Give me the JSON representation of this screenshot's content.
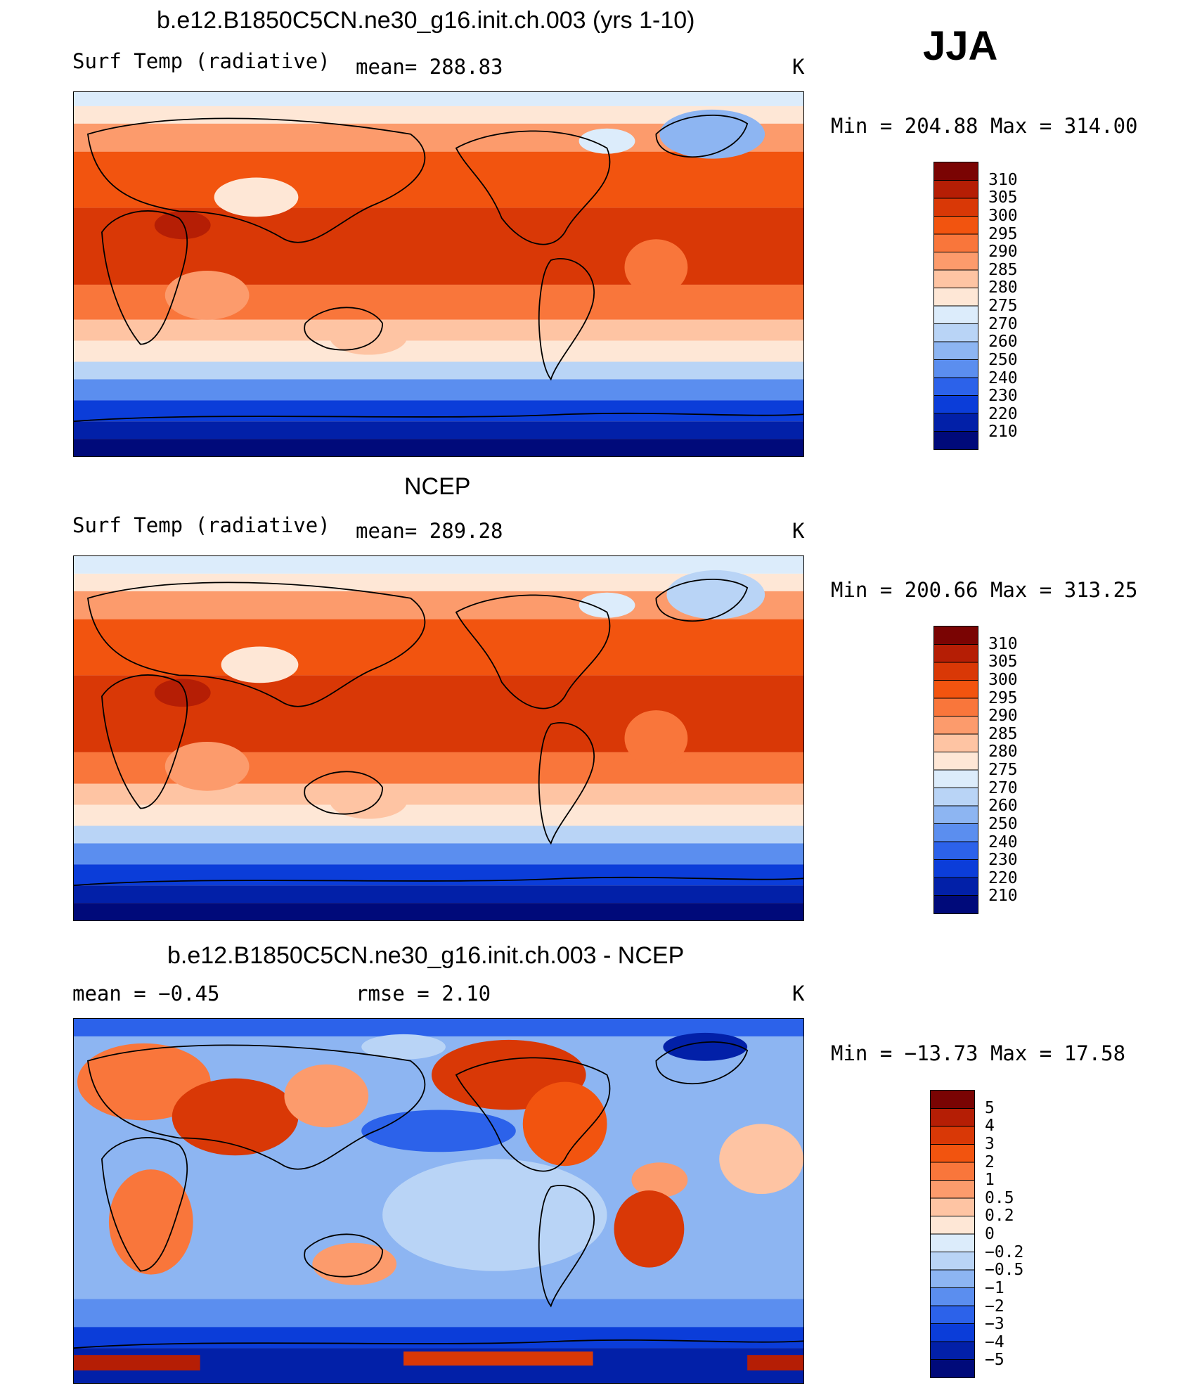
{
  "season": "JJA",
  "panels": [
    {
      "title": "b.e12.B1850C5CN.ne30_g16.init.ch.003 (yrs 1-10)",
      "left_label": "Surf Temp (radiative)",
      "center_label": "mean= 288.83",
      "units": "K",
      "minmax": "Min = 204.88 Max = 314.00",
      "colorbar": {
        "levels": [
          "310",
          "305",
          "300",
          "295",
          "290",
          "285",
          "280",
          "275",
          "270",
          "260",
          "250",
          "240",
          "230",
          "220",
          "210"
        ],
        "colors": [
          "#7a0403",
          "#b51e05",
          "#d93806",
          "#f2540f",
          "#f9763b",
          "#fc9b6c",
          "#fec4a3",
          "#fee7d6",
          "#dcecfb",
          "#b9d4f6",
          "#8db5f2",
          "#5b8eef",
          "#2c62ea",
          "#0b3dd9",
          "#0220a8",
          "#000a7a"
        ]
      }
    },
    {
      "title": "NCEP",
      "left_label": "Surf Temp (radiative)",
      "center_label": "mean= 289.28",
      "units": "K",
      "minmax": "Min = 200.66 Max = 313.25",
      "colorbar": {
        "levels": [
          "310",
          "305",
          "300",
          "295",
          "290",
          "285",
          "280",
          "275",
          "270",
          "260",
          "250",
          "240",
          "230",
          "220",
          "210"
        ],
        "colors": [
          "#7a0403",
          "#b51e05",
          "#d93806",
          "#f2540f",
          "#f9763b",
          "#fc9b6c",
          "#fec4a3",
          "#fee7d6",
          "#dcecfb",
          "#b9d4f6",
          "#8db5f2",
          "#5b8eef",
          "#2c62ea",
          "#0b3dd9",
          "#0220a8",
          "#000a7a"
        ]
      }
    },
    {
      "title": "b.e12.B1850C5CN.ne30_g16.init.ch.003 - NCEP",
      "left_label": "mean =   −0.45",
      "center_label": "rmse =    2.10",
      "units": "K",
      "minmax": "Min = −13.73 Max =  17.58",
      "colorbar": {
        "levels": [
          "5",
          "4",
          "3",
          "2",
          "1",
          "0.5",
          "0.2",
          "0",
          "−0.2",
          "−0.5",
          "−1",
          "−2",
          "−3",
          "−4",
          "−5"
        ],
        "colors": [
          "#7a0403",
          "#b51e05",
          "#d93806",
          "#f2540f",
          "#f9763b",
          "#fc9b6c",
          "#fec4a3",
          "#fee7d6",
          "#dcecfb",
          "#b9d4f6",
          "#8db5f2",
          "#5b8eef",
          "#2c62ea",
          "#0b3dd9",
          "#0220a8",
          "#000a7a"
        ]
      }
    }
  ],
  "palette": {
    "hot1": "#7a0403",
    "hot2": "#b51e05",
    "hot3": "#d93806",
    "hot4": "#f2540f",
    "hot5": "#f9763b",
    "hot6": "#fc9b6c",
    "hot7": "#fec4a3",
    "hot8": "#fee7d6",
    "cold1": "#dcecfb",
    "cold2": "#b9d4f6",
    "cold3": "#8db5f2",
    "cold4": "#5b8eef",
    "cold5": "#2c62ea",
    "cold6": "#0b3dd9",
    "cold7": "#0220a8",
    "cold8": "#000a7a"
  }
}
